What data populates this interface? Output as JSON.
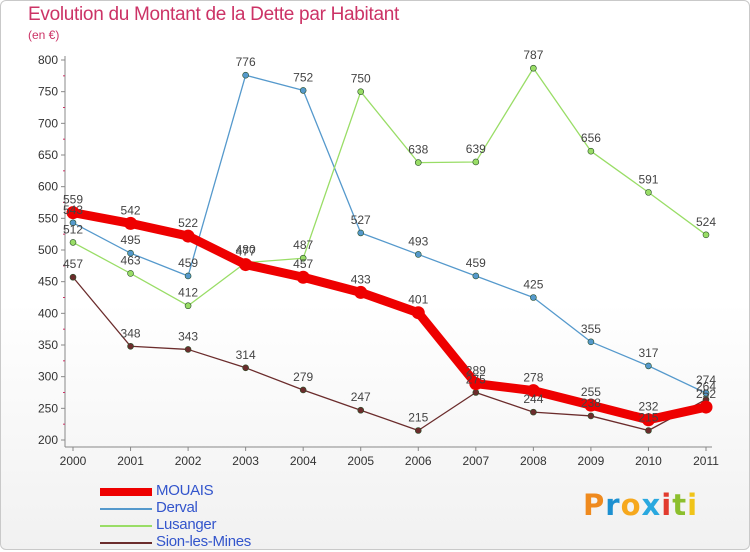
{
  "title": "Evolution du Montant de la Dette par Habitant",
  "subtitle": "(en €)",
  "logo": {
    "text": "Proxiti",
    "letters": [
      "P",
      "r",
      "o",
      "x",
      "i",
      "t",
      "i"
    ],
    "colors": [
      "#ef8a1e",
      "#1d90d0",
      "#f6a81d",
      "#2aa8df",
      "#e23b2e",
      "#8cbf2d",
      "#f0c419"
    ]
  },
  "chart_data": {
    "type": "line",
    "x": [
      "2000",
      "2001",
      "2002",
      "2003",
      "2004",
      "2005",
      "2006",
      "2007",
      "2008",
      "2009",
      "2010",
      "2011"
    ],
    "ylim": [
      200,
      800
    ],
    "yticks": [
      "200",
      "250",
      "300",
      "350",
      "400",
      "450",
      "500",
      "550",
      "600",
      "650",
      "700",
      "750",
      "800"
    ],
    "grid": false,
    "legend_position": "bottom-left",
    "series": [
      {
        "name": "MOUAIS",
        "color": "#ee0000",
        "values": [
          559,
          542,
          522,
          477,
          457,
          433,
          401,
          289,
          278,
          255,
          232,
          252
        ],
        "labels": [
          "559",
          "542",
          "522",
          "477",
          "457",
          "433",
          "401",
          "289",
          "278",
          "255",
          "232",
          "252"
        ]
      },
      {
        "name": "Derval",
        "color": "#5599cc",
        "values": [
          543,
          495,
          459,
          776,
          752,
          527,
          493,
          459,
          425,
          355,
          317,
          274
        ],
        "labels": [
          "543",
          "495",
          "459",
          "776",
          "752",
          "527",
          "493",
          "459",
          "425",
          "355",
          "317",
          "274"
        ]
      },
      {
        "name": "Lusanger",
        "color": "#99dd66",
        "values": [
          512,
          463,
          412,
          480,
          487,
          750,
          638,
          639,
          787,
          656,
          591,
          524
        ],
        "labels": [
          "512",
          "463",
          "412",
          "480",
          "487",
          "750",
          "638",
          "639",
          "787",
          "656",
          "591",
          "524"
        ]
      },
      {
        "name": "Sion-les-Mines",
        "color": "#6b2c2c",
        "values": [
          457,
          348,
          343,
          314,
          279,
          247,
          215,
          275,
          244,
          238,
          215,
          264
        ],
        "labels": [
          "457",
          "348",
          "343",
          "314",
          "279",
          "247",
          "215",
          "275",
          "244",
          "238",
          "215",
          "264"
        ]
      }
    ]
  }
}
